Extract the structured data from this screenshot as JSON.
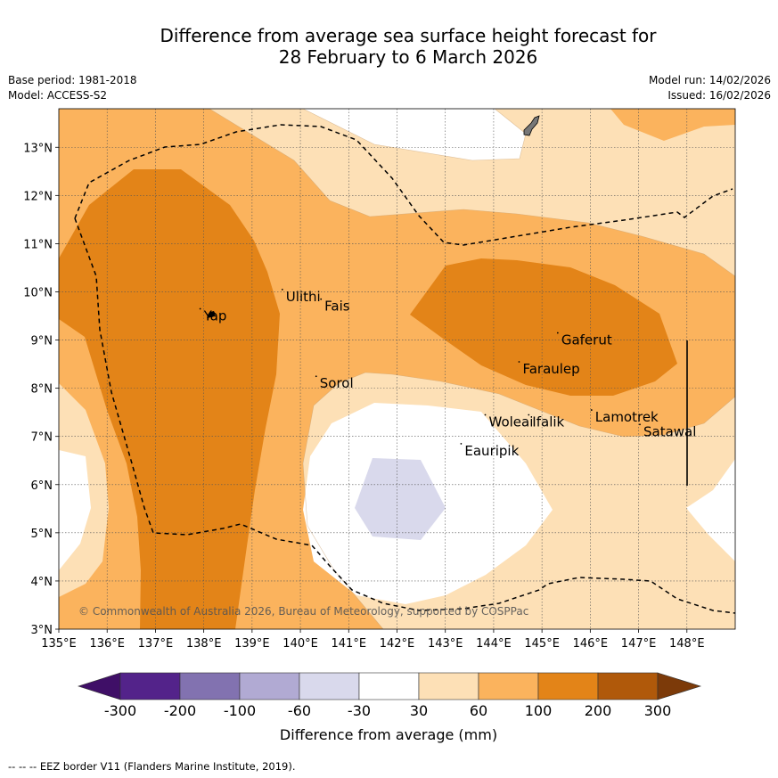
{
  "title": {
    "line1": "Difference from average sea surface height forecast for",
    "line2": "28 February to 6 March 2026"
  },
  "meta": {
    "base_period": "Base period: 1981-2018",
    "model": "Model: ACCESS-S2",
    "model_run": "Model run: 14/02/2026",
    "issued": "Issued: 16/02/2026"
  },
  "axes": {
    "lon_labels": [
      "135°E",
      "136°E",
      "137°E",
      "138°E",
      "139°E",
      "140°E",
      "141°E",
      "142°E",
      "143°E",
      "144°E",
      "145°E",
      "146°E",
      "147°E",
      "148°E"
    ],
    "lat_labels": [
      "3°N",
      "4°N",
      "5°N",
      "6°N",
      "7°N",
      "8°N",
      "9°N",
      "10°N",
      "11°N",
      "12°N",
      "13°N"
    ],
    "lon_range": [
      135,
      149
    ],
    "lat_range": [
      3,
      13.8
    ]
  },
  "places": [
    {
      "name": "Yap",
      "lon": 138.0,
      "lat": 9.5
    },
    {
      "name": "Ulithi",
      "lon": 139.7,
      "lat": 9.9
    },
    {
      "name": "Fais",
      "lon": 140.5,
      "lat": 9.7
    },
    {
      "name": "Sorol",
      "lon": 140.4,
      "lat": 8.1
    },
    {
      "name": "Gaferut",
      "lon": 145.4,
      "lat": 9.0
    },
    {
      "name": "Faraulep",
      "lon": 144.6,
      "lat": 8.4
    },
    {
      "name": "Woleai",
      "lon": 143.9,
      "lat": 7.3
    },
    {
      "name": "Ifalik",
      "lon": 144.8,
      "lat": 7.3
    },
    {
      "name": "Lamotrek",
      "lon": 146.1,
      "lat": 7.4
    },
    {
      "name": "Satawal",
      "lon": 147.1,
      "lat": 7.1
    },
    {
      "name": "Eauripik",
      "lon": 143.4,
      "lat": 6.7
    }
  ],
  "copyright": "© Commonwealth of Australia 2026, Bureau of Meteorology, supported by COSPPac",
  "colorbar": {
    "title": "Difference from average (mm)",
    "ticks": [
      "-300",
      "-200",
      "-100",
      "-60",
      "-30",
      "30",
      "60",
      "100",
      "200",
      "300"
    ],
    "colors": [
      "#3f0f67",
      "#53238a",
      "#8272b0",
      "#b1aad3",
      "#d9d9ec",
      "#ffffff",
      "#fde0b6",
      "#fbb35d",
      "#e38418",
      "#b0590a",
      "#7c3a09"
    ]
  },
  "footer": "--  --  -- EEZ border V11 (Flanders Marine Institute, 2019)."
}
